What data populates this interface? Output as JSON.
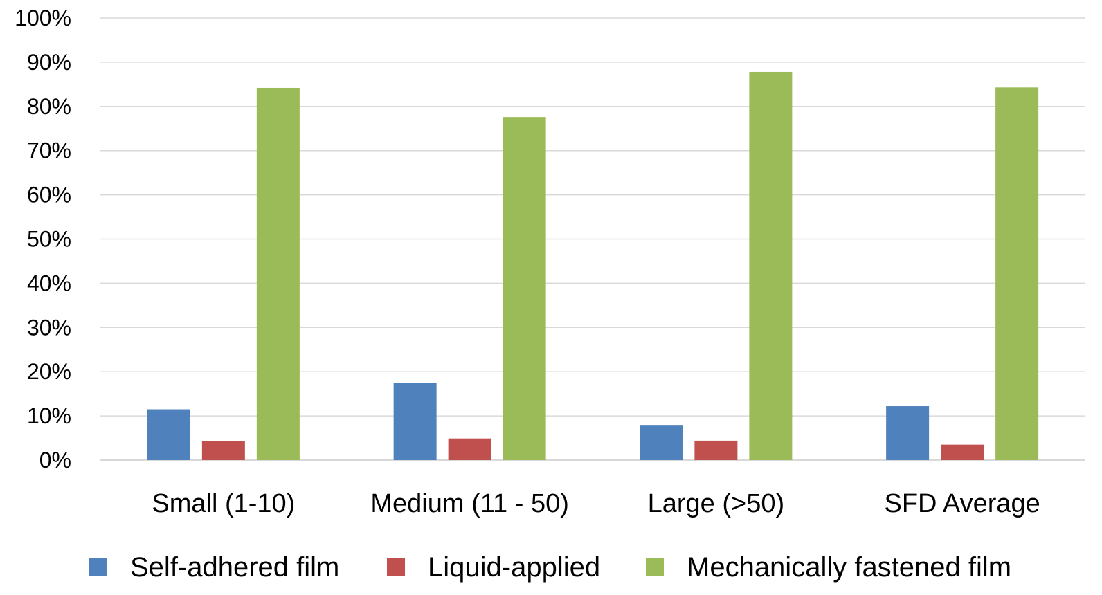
{
  "chart_data": {
    "type": "bar",
    "title": "",
    "xlabel": "",
    "ylabel": "",
    "categories": [
      "Small (1-10)",
      "Medium (11 - 50)",
      "Large (>50)",
      "SFD Average"
    ],
    "series": [
      {
        "name": "Self-adhered film",
        "color": "#4f81bd",
        "values": [
          11.5,
          17.5,
          7.8,
          12.2
        ]
      },
      {
        "name": "Liquid-applied",
        "color": "#c0504d",
        "values": [
          4.3,
          4.9,
          4.4,
          3.5
        ]
      },
      {
        "name": "Mechanically fastened film",
        "color": "#9bbb59",
        "values": [
          84.2,
          77.6,
          87.8,
          84.3
        ]
      }
    ],
    "ylim": [
      0,
      100
    ],
    "yticks": [
      0,
      10,
      20,
      30,
      40,
      50,
      60,
      70,
      80,
      90,
      100
    ],
    "ytick_labels": [
      "0%",
      "10%",
      "20%",
      "30%",
      "40%",
      "50%",
      "60%",
      "70%",
      "80%",
      "90%",
      "100%"
    ],
    "grid": true,
    "legend_position": "bottom"
  }
}
